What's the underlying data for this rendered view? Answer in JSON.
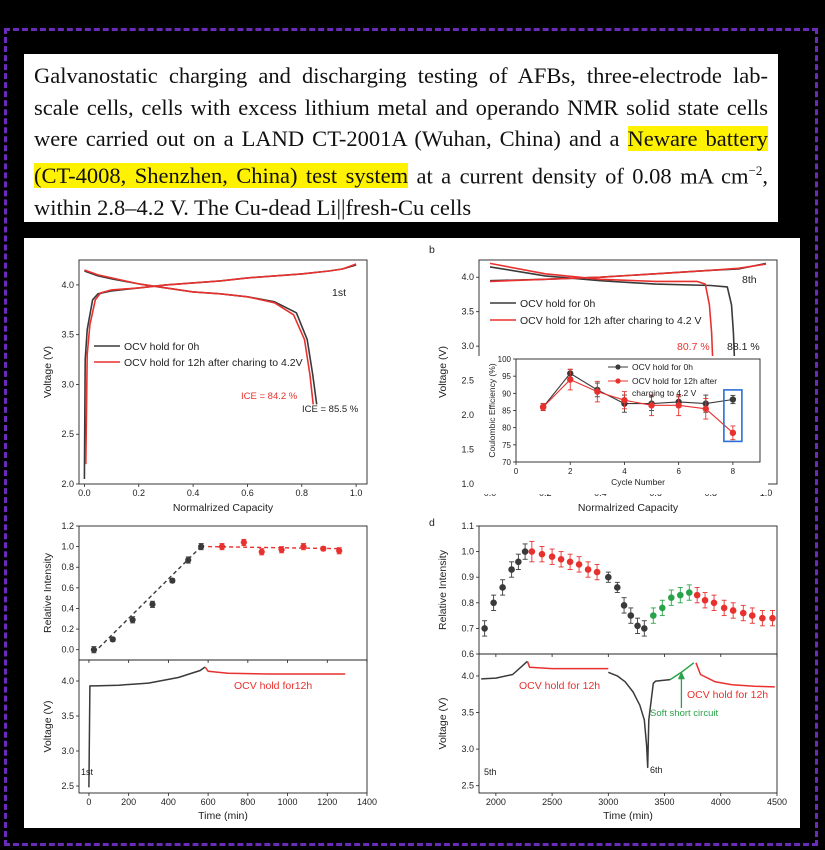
{
  "paragraph": {
    "pre": "Galvanostatic charging and discharging testing of AFBs, three-electrode lab-scale cells, cells with excess lithium metal and operando NMR solid state cells were carried out on a LAND CT-2001A (Wuhan, China) and a ",
    "highlight": "Neware battery (CT-4008, Shenzhen, China) test system",
    "mid": " at a current density of 0.08 mA cm",
    "sup": "−2",
    "post": ", within 2.8–4.2 V. The Cu-dead Li||fresh-Cu cells"
  },
  "colors": {
    "black_series": "#3a3a3a",
    "red_series": "#e8312e",
    "green_series": "#2aa24a",
    "highlight": "#fff200",
    "frame": "#6a2bb8",
    "inset_box": "#2a6fd6"
  },
  "chart_data": [
    {
      "id": "a",
      "type": "line",
      "panel_label": "",
      "xlabel": "Normalrized Capacity",
      "ylabel": "Voltage (V)",
      "xlim": [
        -0.02,
        1.04
      ],
      "ylim": [
        2.0,
        4.25
      ],
      "xticks": [
        "0.0",
        "0.2",
        "0.4",
        "0.6",
        "0.8",
        "1.0"
      ],
      "yticks": [
        "2.0",
        "2.5",
        "3.0",
        "3.5",
        "4.0"
      ],
      "annotation": "1st",
      "legend": [
        "OCV hold for 0h",
        "OCV hold for 12h after charing to 4.2V"
      ],
      "labels": {
        "ice_red": "ICE = 84.2 %",
        "ice_black": "ICE = 85.5 %"
      },
      "series": [
        {
          "name": "OCV hold for 0h",
          "color": "#3a3a3a",
          "charge": [
            [
              0.0,
              2.05
            ],
            [
              0.003,
              3.25
            ],
            [
              0.01,
              3.55
            ],
            [
              0.03,
              3.85
            ],
            [
              0.05,
              3.91
            ],
            [
              0.1,
              3.94
            ],
            [
              0.2,
              3.97
            ],
            [
              0.3,
              4.0
            ],
            [
              0.4,
              4.02
            ],
            [
              0.5,
              4.04
            ],
            [
              0.6,
              4.07
            ],
            [
              0.7,
              4.09
            ],
            [
              0.8,
              4.11
            ],
            [
              0.9,
              4.14
            ],
            [
              0.95,
              4.16
            ],
            [
              1.0,
              4.2
            ]
          ],
          "discharge": [
            [
              0.0,
              4.14
            ],
            [
              0.05,
              4.09
            ],
            [
              0.1,
              4.06
            ],
            [
              0.2,
              4.01
            ],
            [
              0.3,
              3.97
            ],
            [
              0.4,
              3.93
            ],
            [
              0.5,
              3.91
            ],
            [
              0.6,
              3.88
            ],
            [
              0.7,
              3.83
            ],
            [
              0.78,
              3.72
            ],
            [
              0.82,
              3.45
            ],
            [
              0.84,
              3.1
            ],
            [
              0.855,
              2.8
            ]
          ]
        },
        {
          "name": "OCV hold for 12h after charing to 4.2V",
          "color": "#e8312e",
          "charge": [
            [
              0.005,
              2.2
            ],
            [
              0.01,
              3.3
            ],
            [
              0.02,
              3.6
            ],
            [
              0.04,
              3.85
            ],
            [
              0.06,
              3.92
            ],
            [
              0.1,
              3.95
            ],
            [
              0.2,
              3.97
            ],
            [
              0.3,
              4.0
            ],
            [
              0.4,
              4.02
            ],
            [
              0.5,
              4.04
            ],
            [
              0.6,
              4.07
            ],
            [
              0.7,
              4.09
            ],
            [
              0.8,
              4.11
            ],
            [
              0.9,
              4.14
            ],
            [
              0.95,
              4.16
            ],
            [
              1.0,
              4.21
            ]
          ],
          "discharge": [
            [
              0.0,
              4.15
            ],
            [
              0.05,
              4.1
            ],
            [
              0.1,
              4.07
            ],
            [
              0.2,
              4.01
            ],
            [
              0.3,
              3.97
            ],
            [
              0.4,
              3.93
            ],
            [
              0.5,
              3.91
            ],
            [
              0.6,
              3.88
            ],
            [
              0.7,
              3.82
            ],
            [
              0.77,
              3.7
            ],
            [
              0.81,
              3.45
            ],
            [
              0.83,
              3.1
            ],
            [
              0.842,
              2.8
            ]
          ]
        }
      ]
    },
    {
      "id": "b",
      "type": "line",
      "panel_label": "b",
      "xlabel": "Normalrized Capacity",
      "ylabel": "Voltage (V)",
      "xlim": [
        -0.04,
        1.04
      ],
      "ylim": [
        1.0,
        4.25
      ],
      "xticks": [
        "0.0",
        "0.2",
        "0.4",
        "0.6",
        "0.8",
        "1.0"
      ],
      "yticks": [
        "1.0",
        "1.5",
        "2.0",
        "2.5",
        "3.0",
        "3.5",
        "4.0"
      ],
      "annotation": "8th",
      "legend": [
        "OCV hold for 0h",
        "OCV hold for 12h after charing to 4.2 V"
      ],
      "labels": {
        "pct_red": "80.7 %",
        "pct_black": "88.1 %"
      },
      "series": [
        {
          "name": "OCV hold for 0h",
          "color": "#3a3a3a",
          "charge": [
            [
              0.0,
              3.95
            ],
            [
              0.2,
              3.97
            ],
            [
              0.4,
              4.0
            ],
            [
              0.6,
              4.05
            ],
            [
              0.8,
              4.1
            ],
            [
              0.9,
              4.12
            ],
            [
              1.0,
              4.2
            ]
          ],
          "discharge": [
            [
              0.0,
              4.15
            ],
            [
              0.2,
              4.02
            ],
            [
              0.4,
              3.95
            ],
            [
              0.6,
              3.9
            ],
            [
              0.8,
              3.88
            ],
            [
              0.86,
              3.86
            ],
            [
              0.875,
              3.6
            ],
            [
              0.882,
              3.2
            ],
            [
              0.886,
              2.8
            ]
          ]
        },
        {
          "name": "OCV hold for 12h after charing to 4.2 V",
          "color": "#e8312e",
          "charge": [
            [
              0.0,
              3.94
            ],
            [
              0.2,
              3.97
            ],
            [
              0.4,
              4.0
            ],
            [
              0.6,
              4.05
            ],
            [
              0.8,
              4.1
            ],
            [
              0.9,
              4.13
            ],
            [
              1.0,
              4.19
            ]
          ],
          "discharge": [
            [
              0.0,
              4.2
            ],
            [
              0.2,
              4.05
            ],
            [
              0.4,
              3.97
            ],
            [
              0.6,
              3.94
            ],
            [
              0.75,
              3.94
            ],
            [
              0.78,
              3.9
            ],
            [
              0.795,
              3.6
            ],
            [
              0.803,
              3.2
            ],
            [
              0.807,
              2.8
            ]
          ]
        }
      ],
      "inset": {
        "xlabel": "Cycle Number",
        "ylabel": "Coulombic Efficiency (%)",
        "xlim": [
          0,
          9
        ],
        "ylim": [
          70,
          100
        ],
        "xticks": [
          "0",
          "2",
          "4",
          "6",
          "8"
        ],
        "yticks": [
          "70",
          "75",
          "80",
          "85",
          "90",
          "95",
          "100"
        ],
        "legend": [
          "OCV hold for 0h",
          "OCV hold for 12h after",
          "charging to 4.2 V"
        ],
        "series": [
          {
            "name": "OCV hold for 0h",
            "color": "#3a3a3a",
            "x": [
              1,
              2,
              3,
              4,
              5,
              6,
              7,
              8
            ],
            "y": [
              86.0,
              95.8,
              91.0,
              87.0,
              87.0,
              87.5,
              87.0,
              88.2
            ],
            "err": [
              1.0,
              1.2,
              2.0,
              2.5,
              2.0,
              1.5,
              2.5,
              1.2
            ]
          },
          {
            "name": "OCV hold for 12h after charging to 4.2 V",
            "color": "#e8312e",
            "x": [
              1,
              2,
              3,
              4,
              5,
              6,
              7,
              8
            ],
            "y": [
              86.0,
              94.0,
              90.5,
              88.0,
              86.5,
              86.5,
              85.5,
              78.5
            ],
            "err": [
              1.0,
              3.0,
              3.0,
              2.5,
              3.0,
              3.0,
              3.0,
              2.0
            ]
          }
        ]
      }
    },
    {
      "id": "c",
      "type": "scatter",
      "panel_label": "",
      "xlabel": "Time (min)",
      "ylabel_top": "Relative Intensity",
      "ylabel_bottom": "Voltage (V)",
      "xlim": [
        -50,
        1400
      ],
      "xticks": [
        "0",
        "200",
        "400",
        "600",
        "800",
        "1000",
        "1200",
        "1400"
      ],
      "ylim_top": [
        -0.1,
        1.2
      ],
      "yticks_top": [
        "0.0",
        "0.2",
        "0.4",
        "0.6",
        "0.8",
        "1.0",
        "1.2"
      ],
      "ylim_bottom": [
        2.4,
        4.3
      ],
      "yticks_bottom": [
        "2.5",
        "3.0",
        "3.5",
        "4.0"
      ],
      "annotation_bottom": "OCV hold for12h",
      "cycle_label": "1st",
      "intensity": [
        {
          "color": "#3a3a3a",
          "x": [
            25,
            120,
            220,
            320,
            420,
            500,
            565
          ],
          "y": [
            0.0,
            0.1,
            0.29,
            0.44,
            0.67,
            0.87,
            1.0
          ],
          "err": [
            0.03,
            0.02,
            0.03,
            0.03,
            0.02,
            0.03,
            0.03
          ]
        },
        {
          "color": "#e8312e",
          "x": [
            670,
            780,
            870,
            970,
            1080,
            1180,
            1260
          ],
          "y": [
            1.0,
            1.04,
            0.95,
            0.97,
            1.0,
            0.98,
            0.96
          ],
          "err": [
            0.03,
            0.03,
            0.03,
            0.03,
            0.03,
            0.02,
            0.03
          ]
        }
      ],
      "voltage": [
        {
          "color": "#3a3a3a",
          "pts": [
            [
              0,
              2.48
            ],
            [
              5,
              3.93
            ],
            [
              30,
              3.93
            ],
            [
              150,
              3.94
            ],
            [
              300,
              3.97
            ],
            [
              450,
              4.05
            ],
            [
              560,
              4.15
            ],
            [
              585,
              4.2
            ]
          ]
        },
        {
          "color": "#e8312e",
          "pts": [
            [
              585,
              4.2
            ],
            [
              600,
              4.14
            ],
            [
              700,
              4.11
            ],
            [
              900,
              4.1
            ],
            [
              1100,
              4.1
            ],
            [
              1290,
              4.1
            ]
          ]
        }
      ]
    },
    {
      "id": "d",
      "type": "scatter",
      "panel_label": "d",
      "xlabel": "Time (min)",
      "ylabel_top": "Relative Intensity",
      "ylabel_bottom": "Voltage (V)",
      "xlim": [
        1850,
        4500
      ],
      "xticks": [
        "2000",
        "2500",
        "3000",
        "3500",
        "4000",
        "4500"
      ],
      "ylim_top": [
        0.6,
        1.1
      ],
      "yticks_top": [
        "0.6",
        "0.7",
        "0.8",
        "0.9",
        "1.0",
        "1.1"
      ],
      "ylim_bottom": [
        2.4,
        4.3
      ],
      "yticks_bottom": [
        "2.5",
        "3.0",
        "3.5",
        "4.0"
      ],
      "labels": {
        "ocv1": "OCV hold for 12h",
        "ocv2": "OCV hold for 12h",
        "soft": "Soft short circuit",
        "c5": "5th",
        "c6": "6th"
      },
      "intensity": [
        {
          "color": "#3a3a3a",
          "x": [
            1900,
            1980,
            2060,
            2140,
            2200,
            2260,
            3000,
            3080,
            3140,
            3200,
            3260,
            3320
          ],
          "y": [
            0.7,
            0.8,
            0.86,
            0.93,
            0.96,
            1.0,
            0.9,
            0.86,
            0.79,
            0.75,
            0.71,
            0.7
          ],
          "err": [
            0.03,
            0.03,
            0.03,
            0.03,
            0.03,
            0.03,
            0.02,
            0.02,
            0.03,
            0.03,
            0.03,
            0.03
          ]
        },
        {
          "color": "#e8312e",
          "x": [
            2320,
            2410,
            2500,
            2580,
            2660,
            2740,
            2820,
            2900,
            3790,
            3860,
            3940,
            4030,
            4110,
            4200,
            4280,
            4370,
            4460
          ],
          "y": [
            1.0,
            0.99,
            0.98,
            0.97,
            0.96,
            0.95,
            0.93,
            0.92,
            0.83,
            0.81,
            0.8,
            0.78,
            0.77,
            0.76,
            0.75,
            0.74,
            0.74
          ],
          "err": [
            0.04,
            0.03,
            0.03,
            0.03,
            0.03,
            0.03,
            0.03,
            0.03,
            0.03,
            0.03,
            0.03,
            0.03,
            0.03,
            0.03,
            0.03,
            0.03,
            0.03
          ]
        },
        {
          "color": "#2aa24a",
          "x": [
            3400,
            3480,
            3560,
            3640,
            3720
          ],
          "y": [
            0.75,
            0.78,
            0.82,
            0.83,
            0.84
          ],
          "err": [
            0.03,
            0.03,
            0.03,
            0.03,
            0.03
          ]
        }
      ],
      "voltage": [
        {
          "color": "#3a3a3a",
          "pts": [
            [
              1870,
              3.96
            ],
            [
              2000,
              3.97
            ],
            [
              2150,
              4.02
            ],
            [
              2280,
              4.2
            ]
          ]
        },
        {
          "color": "#e8312e",
          "pts": [
            [
              2280,
              4.2
            ],
            [
              2300,
              4.12
            ],
            [
              2500,
              4.1
            ],
            [
              3000,
              4.1
            ]
          ]
        },
        {
          "color": "#3a3a3a",
          "pts": [
            [
              3000,
              4.05
            ],
            [
              3080,
              4.0
            ],
            [
              3150,
              3.92
            ],
            [
              3220,
              3.78
            ],
            [
              3280,
              3.6
            ],
            [
              3320,
              3.4
            ],
            [
              3340,
              3.05
            ],
            [
              3350,
              2.75
            ],
            [
              3360,
              3.4
            ],
            [
              3400,
              3.9
            ],
            [
              3420,
              3.93
            ],
            [
              3550,
              3.95
            ]
          ]
        },
        {
          "color": "#2aa24a",
          "pts": [
            [
              3550,
              3.95
            ],
            [
              3650,
              4.05
            ],
            [
              3760,
              4.18
            ]
          ]
        },
        {
          "color": "#e8312e",
          "pts": [
            [
              3780,
              4.18
            ],
            [
              3820,
              4.02
            ],
            [
              3950,
              3.92
            ],
            [
              4100,
              3.88
            ],
            [
              4300,
              3.86
            ],
            [
              4480,
              3.85
            ]
          ]
        }
      ]
    }
  ]
}
